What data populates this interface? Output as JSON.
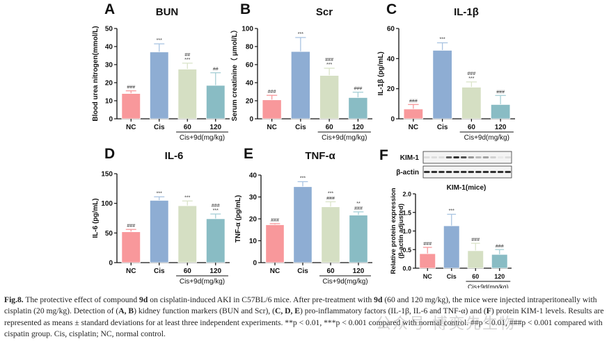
{
  "figure": {
    "categories": [
      "NC",
      "Cis",
      "60",
      "120"
    ],
    "group_label": "Cis+9d(mg/kg)",
    "bar_colors": [
      "#f8989b",
      "#8eadd3",
      "#d5dfc3",
      "#89bcc4"
    ],
    "err_colors": [
      "#f8989b",
      "#a9c4e2",
      "#dbe4c9",
      "#a6cfd6"
    ]
  },
  "chart_data": [
    {
      "panel": "A",
      "type": "bar",
      "title": "BUN",
      "ylabel": "Blood urea nitrogen(mmol/L)",
      "ylim": [
        0,
        50
      ],
      "yticks": [
        "0",
        "10",
        "20",
        "30",
        "40",
        "50"
      ],
      "categories": [
        "NC",
        "Cis",
        "60",
        "120"
      ],
      "values": [
        14,
        37,
        27.5,
        18.5
      ],
      "errors": [
        1.5,
        4.5,
        3.3,
        7
      ],
      "annotations": [
        [
          "###"
        ],
        [
          "***"
        ],
        [
          "##",
          "***"
        ],
        [
          "##"
        ]
      ]
    },
    {
      "panel": "B",
      "type": "bar",
      "title": "Scr",
      "ylabel": "Serum creatinine（ μmol/L）",
      "ylim": [
        0,
        100
      ],
      "yticks": [
        "0",
        "20",
        "40",
        "60",
        "80",
        "100"
      ],
      "categories": [
        "NC",
        "Cis",
        "60",
        "120"
      ],
      "values": [
        21,
        74.5,
        48,
        23.5
      ],
      "errors": [
        5,
        15.5,
        8,
        6
      ],
      "annotations": [
        [
          "###"
        ],
        [
          "***"
        ],
        [
          "###",
          "***"
        ],
        [
          "###"
        ]
      ]
    },
    {
      "panel": "C",
      "type": "bar",
      "title": "IL-1β",
      "ylabel": "IL-1β (pg/mL)",
      "ylim": [
        0,
        60
      ],
      "yticks": [
        "0",
        "20",
        "40",
        "60"
      ],
      "categories": [
        "NC",
        "Cis",
        "60",
        "120"
      ],
      "values": [
        6.5,
        45.5,
        21,
        9.5
      ],
      "errors": [
        3,
        5,
        3.5,
        6
      ],
      "annotations": [
        [
          "###"
        ],
        [
          "***"
        ],
        [
          "###",
          "***"
        ],
        [
          "###"
        ]
      ]
    },
    {
      "panel": "D",
      "type": "bar",
      "title": "IL-6",
      "ylabel": "IL-6 (pg/mL)",
      "ylim": [
        0,
        150
      ],
      "yticks": [
        "0",
        "50",
        "100",
        "150"
      ],
      "categories": [
        "NC",
        "Cis",
        "60",
        "120"
      ],
      "values": [
        52,
        105,
        96,
        74
      ],
      "errors": [
        4,
        6,
        8,
        8
      ],
      "annotations": [
        [
          "###"
        ],
        [
          "***"
        ],
        [
          "***"
        ],
        [
          "###",
          "***"
        ]
      ]
    },
    {
      "panel": "E",
      "type": "bar",
      "title": "TNF-α",
      "ylabel": "TNF-α (pg/mL)",
      "ylim": [
        0,
        40
      ],
      "yticks": [
        "0",
        "10",
        "20",
        "30",
        "40"
      ],
      "categories": [
        "NC",
        "Cis",
        "60",
        "120"
      ],
      "values": [
        17.3,
        34.7,
        25.5,
        21.7
      ],
      "errors": [
        0.5,
        2.3,
        2.3,
        1.5
      ],
      "annotations": [
        [
          "###"
        ],
        [
          "***"
        ],
        [
          "***",
          "###"
        ],
        [
          "**",
          "###"
        ]
      ]
    },
    {
      "panel": "F",
      "type": "bar",
      "title": "KIM-1(mice)",
      "ylabel": "Relative protein expression",
      "ylabel2": "(β-actin adjusted)",
      "ylim": [
        0,
        2.0
      ],
      "yticks": [
        "0.0",
        "0.5",
        "1.0",
        "1.5",
        "2.0"
      ],
      "categories": [
        "NC",
        "Cis",
        "60",
        "120"
      ],
      "values": [
        0.39,
        1.14,
        0.47,
        0.37
      ],
      "errors": [
        0.17,
        0.31,
        0.2,
        0.13
      ],
      "annotations": [
        [
          "###"
        ],
        [
          "***"
        ],
        [
          "###"
        ],
        [
          "###"
        ]
      ],
      "blot": {
        "labels": [
          "KIM-1",
          "β-actin"
        ],
        "kim1_intensity": [
          0.15,
          0.15,
          0.15,
          0.7,
          0.9,
          0.75,
          0.45,
          0.3,
          0.4,
          0.2,
          0.1,
          0.15
        ],
        "actin_intensity": [
          0.9,
          0.9,
          0.9,
          0.9,
          0.9,
          0.9,
          0.9,
          0.9,
          0.9,
          0.9,
          0.9,
          0.9
        ]
      }
    }
  ],
  "caption": {
    "fig_label": "Fig.8.",
    "t1": " The protective effect of compound ",
    "c1": "9d",
    "t2": " on cisplatin-induced AKI in C57BL/6 mice. After pre-treatment with ",
    "c2": "9d",
    "t3": " (60 and 120 mg/kg), the mice were injected intraperitoneally with cisplatin (20 mg/kg). Detection of (",
    "p1": "A, B",
    "t4": ") kidney function markers (BUN and Scr), (",
    "p2": "C, D, E",
    "t5": ") pro-inflammatory factors (IL-1β, IL-6 and TNF-α) and (",
    "p3": "F",
    "t6": ") protein KIM-1 levels. Results are represented as means ± standard deviations for at least three independent experiments. **p < 0.01, ***p < 0.001 compared with normal control. ##p < 0.01, ###p < 0.001 compared with cispatin group. Cis, cisplatin; NC, normal control."
  },
  "watermark": "公众号·博奕先生物"
}
